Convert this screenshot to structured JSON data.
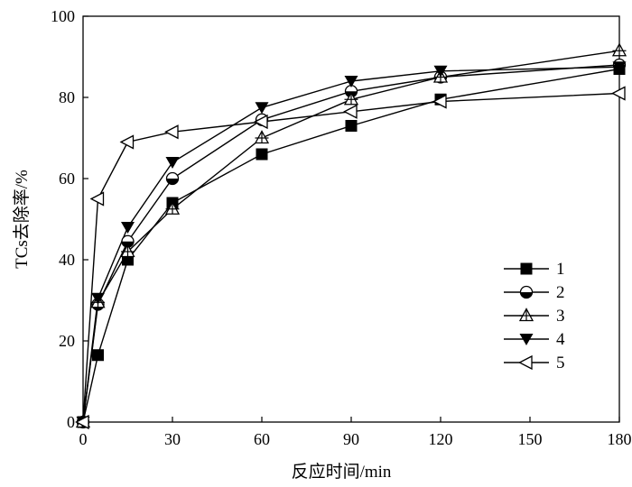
{
  "chart_data": {
    "type": "line",
    "title": "",
    "xlabel": "反应时间/min",
    "ylabel": "TCs去除率/%",
    "xlim": [
      0,
      180
    ],
    "ylim": [
      0,
      100
    ],
    "xticks": [
      0,
      30,
      60,
      90,
      120,
      150,
      180
    ],
    "yticks": [
      0,
      20,
      40,
      60,
      80,
      100
    ],
    "grid": false,
    "legend_position": "right",
    "series": [
      {
        "name": "1",
        "marker": "filled-square",
        "x": [
          0,
          5,
          15,
          30,
          60,
          90,
          120,
          180
        ],
        "y": [
          0,
          16.5,
          40,
          54,
          66,
          73,
          79.5,
          87
        ]
      },
      {
        "name": "2",
        "marker": "half-filled-circle",
        "x": [
          0,
          5,
          15,
          30,
          60,
          90,
          120,
          180
        ],
        "y": [
          0,
          29,
          44.5,
          60,
          74.5,
          81.5,
          85,
          88
        ]
      },
      {
        "name": "3",
        "marker": "open-triangle-cross",
        "x": [
          0,
          5,
          15,
          30,
          60,
          90,
          120,
          180
        ],
        "y": [
          0,
          29.5,
          42,
          52.5,
          70,
          79.5,
          85,
          91.5
        ]
      },
      {
        "name": "4",
        "marker": "filled-triangle-down",
        "x": [
          0,
          5,
          15,
          30,
          60,
          90,
          120,
          180
        ],
        "y": [
          0,
          30.5,
          48,
          64,
          77.5,
          84,
          86.5,
          87.5
        ]
      },
      {
        "name": "5",
        "marker": "open-triangle-left",
        "x": [
          0,
          5,
          15,
          30,
          60,
          90,
          120,
          180
        ],
        "y": [
          0,
          55,
          69,
          71.5,
          74,
          76.5,
          79,
          81
        ]
      }
    ]
  }
}
